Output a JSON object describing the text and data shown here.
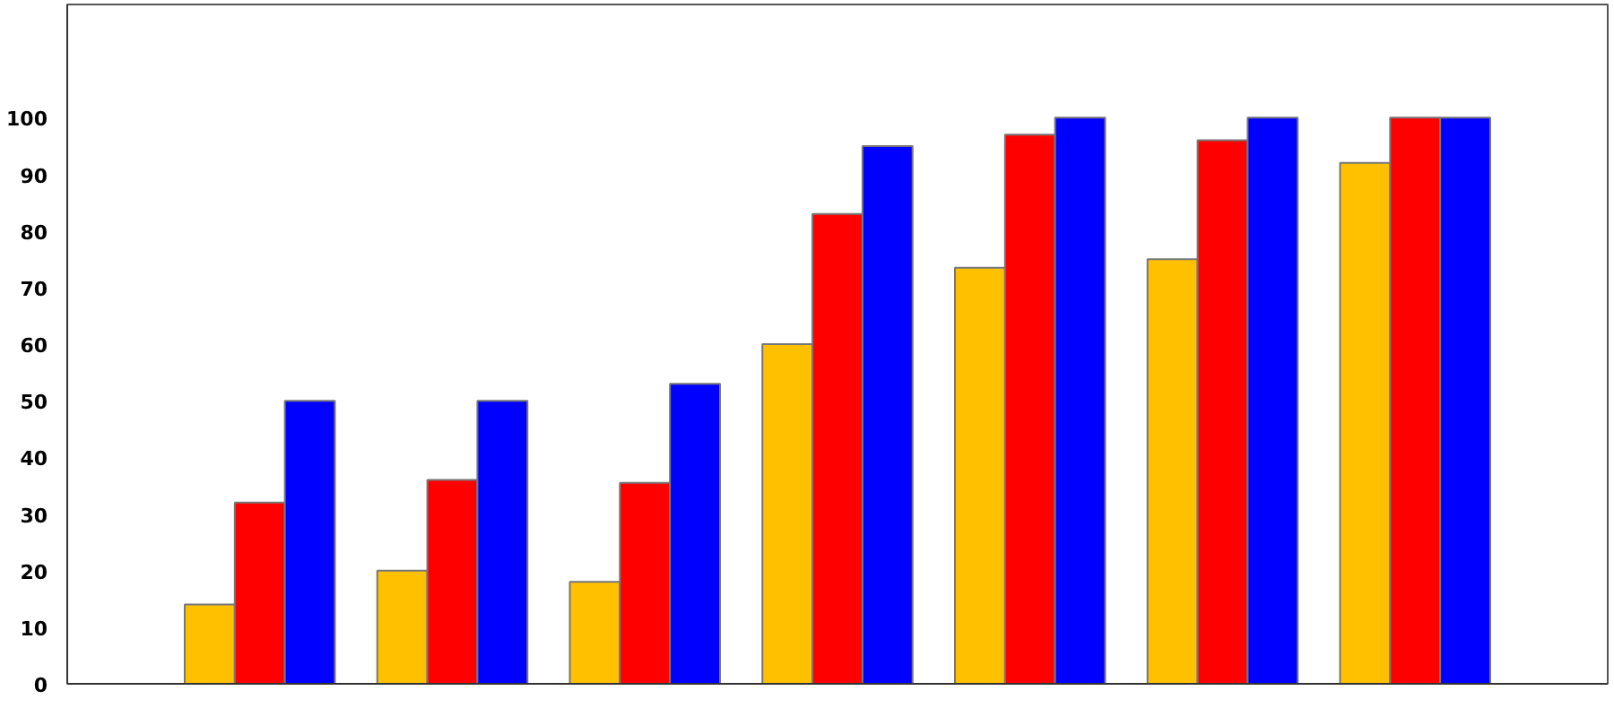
{
  "chart_data": {
    "type": "bar",
    "categories": [
      null,
      null,
      null,
      null,
      null,
      null,
      null
    ],
    "series": [
      {
        "color": "#ffc000",
        "values": [
          14,
          20,
          18,
          60,
          73.5,
          75,
          92
        ]
      },
      {
        "color": "#ff0000",
        "values": [
          32,
          36,
          35.5,
          83,
          97,
          96,
          100
        ]
      },
      {
        "color": "#0000ff",
        "values": [
          50,
          50,
          53,
          95,
          100,
          100,
          100
        ]
      }
    ],
    "ylim": [
      0,
      120
    ],
    "yticks": [
      0,
      10,
      20,
      30,
      40,
      50,
      60,
      70,
      80,
      90,
      100
    ],
    "grid": false
  }
}
